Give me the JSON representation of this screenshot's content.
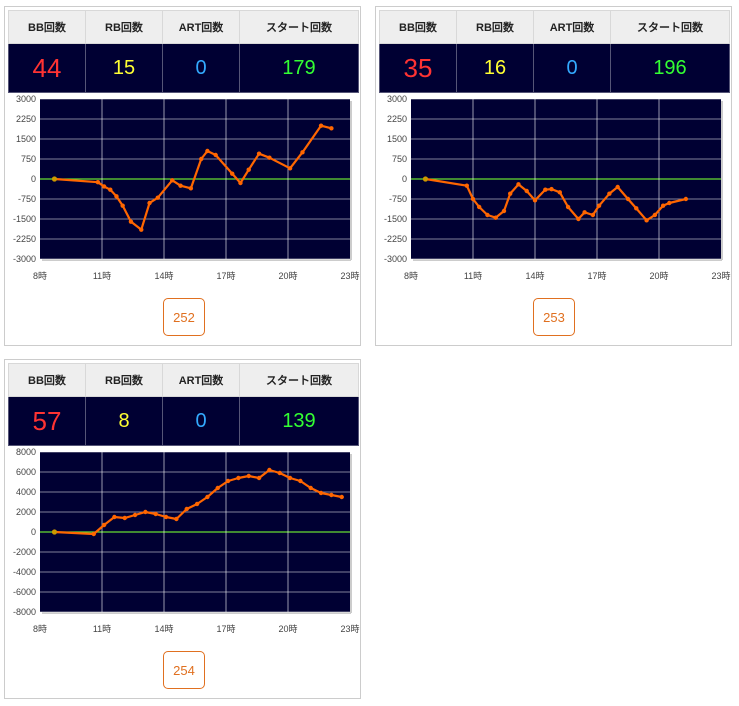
{
  "headers": {
    "bb": "BB回数",
    "rb": "RB回数",
    "art": "ART回数",
    "start": "スタート回数"
  },
  "colors": {
    "bb": "#ff3333",
    "rb": "#ffff33",
    "art": "#33aaff",
    "start": "#33ff33",
    "line": "#ff6600",
    "zero_line": "#66dd33",
    "plot_bg": "#000033",
    "button": "#e07020"
  },
  "machines": [
    {
      "bb": "44",
      "rb": "15",
      "art": "0",
      "start": "179",
      "button": "252"
    },
    {
      "bb": "35",
      "rb": "16",
      "art": "0",
      "start": "196",
      "button": "253"
    },
    {
      "bb": "57",
      "rb": "8",
      "art": "0",
      "start": "139",
      "button": "254"
    }
  ],
  "chart_data": [
    {
      "type": "line",
      "x_ticks": [
        "8時",
        "11時",
        "14時",
        "17時",
        "20時",
        "23時"
      ],
      "y_ticks": [
        "3000",
        "2250",
        "1500",
        "750",
        "0",
        "-750",
        "-1500",
        "-2250",
        "-3000"
      ],
      "ylim": [
        -3000,
        3000
      ],
      "xlim": [
        8,
        23
      ],
      "grid": true,
      "series": [
        {
          "x": [
            8.7,
            10.8,
            11.1,
            11.4,
            11.7,
            12.0,
            12.4,
            12.9,
            13.3,
            13.7,
            14.4,
            14.8,
            15.3,
            15.8,
            16.1,
            16.5,
            17.3,
            17.7,
            18.1,
            18.6,
            19.1,
            20.1,
            20.7,
            21.6,
            22.1
          ],
          "y": [
            0,
            -120,
            -280,
            -400,
            -650,
            -1000,
            -1600,
            -1900,
            -900,
            -700,
            -50,
            -250,
            -350,
            750,
            1050,
            900,
            200,
            -150,
            350,
            950,
            800,
            400,
            1000,
            2000,
            1900
          ]
        }
      ]
    },
    {
      "type": "line",
      "x_ticks": [
        "8時",
        "11時",
        "14時",
        "17時",
        "20時",
        "23時"
      ],
      "y_ticks": [
        "3000",
        "2250",
        "1500",
        "750",
        "0",
        "-750",
        "-1500",
        "-2250",
        "-3000"
      ],
      "ylim": [
        -3000,
        3000
      ],
      "xlim": [
        8,
        23
      ],
      "grid": true,
      "series": [
        {
          "x": [
            8.7,
            10.7,
            11.0,
            11.3,
            11.7,
            12.1,
            12.5,
            12.8,
            13.2,
            13.6,
            14.0,
            14.5,
            14.8,
            15.2,
            15.6,
            16.1,
            16.4,
            16.8,
            17.1,
            17.6,
            18.0,
            18.5,
            18.9,
            19.4,
            19.8,
            20.2,
            20.5,
            21.3
          ],
          "y": [
            0,
            -250,
            -750,
            -1050,
            -1350,
            -1450,
            -1200,
            -550,
            -200,
            -450,
            -800,
            -400,
            -380,
            -500,
            -1050,
            -1500,
            -1250,
            -1350,
            -1000,
            -550,
            -300,
            -750,
            -1100,
            -1550,
            -1350,
            -1000,
            -900,
            -750
          ]
        }
      ]
    },
    {
      "type": "line",
      "x_ticks": [
        "8時",
        "11時",
        "14時",
        "17時",
        "20時",
        "23時"
      ],
      "y_ticks": [
        "8000",
        "6000",
        "4000",
        "2000",
        "0",
        "-2000",
        "-4000",
        "-6000",
        "-8000"
      ],
      "ylim": [
        -8000,
        8000
      ],
      "xlim": [
        8,
        23
      ],
      "grid": true,
      "series": [
        {
          "x": [
            8.7,
            10.6,
            11.1,
            11.6,
            12.1,
            12.6,
            13.1,
            13.6,
            14.1,
            14.6,
            15.1,
            15.6,
            16.1,
            16.6,
            17.1,
            17.6,
            18.1,
            18.6,
            19.1,
            19.6,
            20.1,
            20.6,
            21.1,
            21.6,
            22.1,
            22.6
          ],
          "y": [
            0,
            -200,
            700,
            1500,
            1400,
            1700,
            2000,
            1800,
            1500,
            1300,
            2300,
            2800,
            3500,
            4400,
            5100,
            5400,
            5600,
            5400,
            6200,
            5900,
            5400,
            5100,
            4400,
            3900,
            3700,
            3500
          ]
        }
      ]
    }
  ]
}
